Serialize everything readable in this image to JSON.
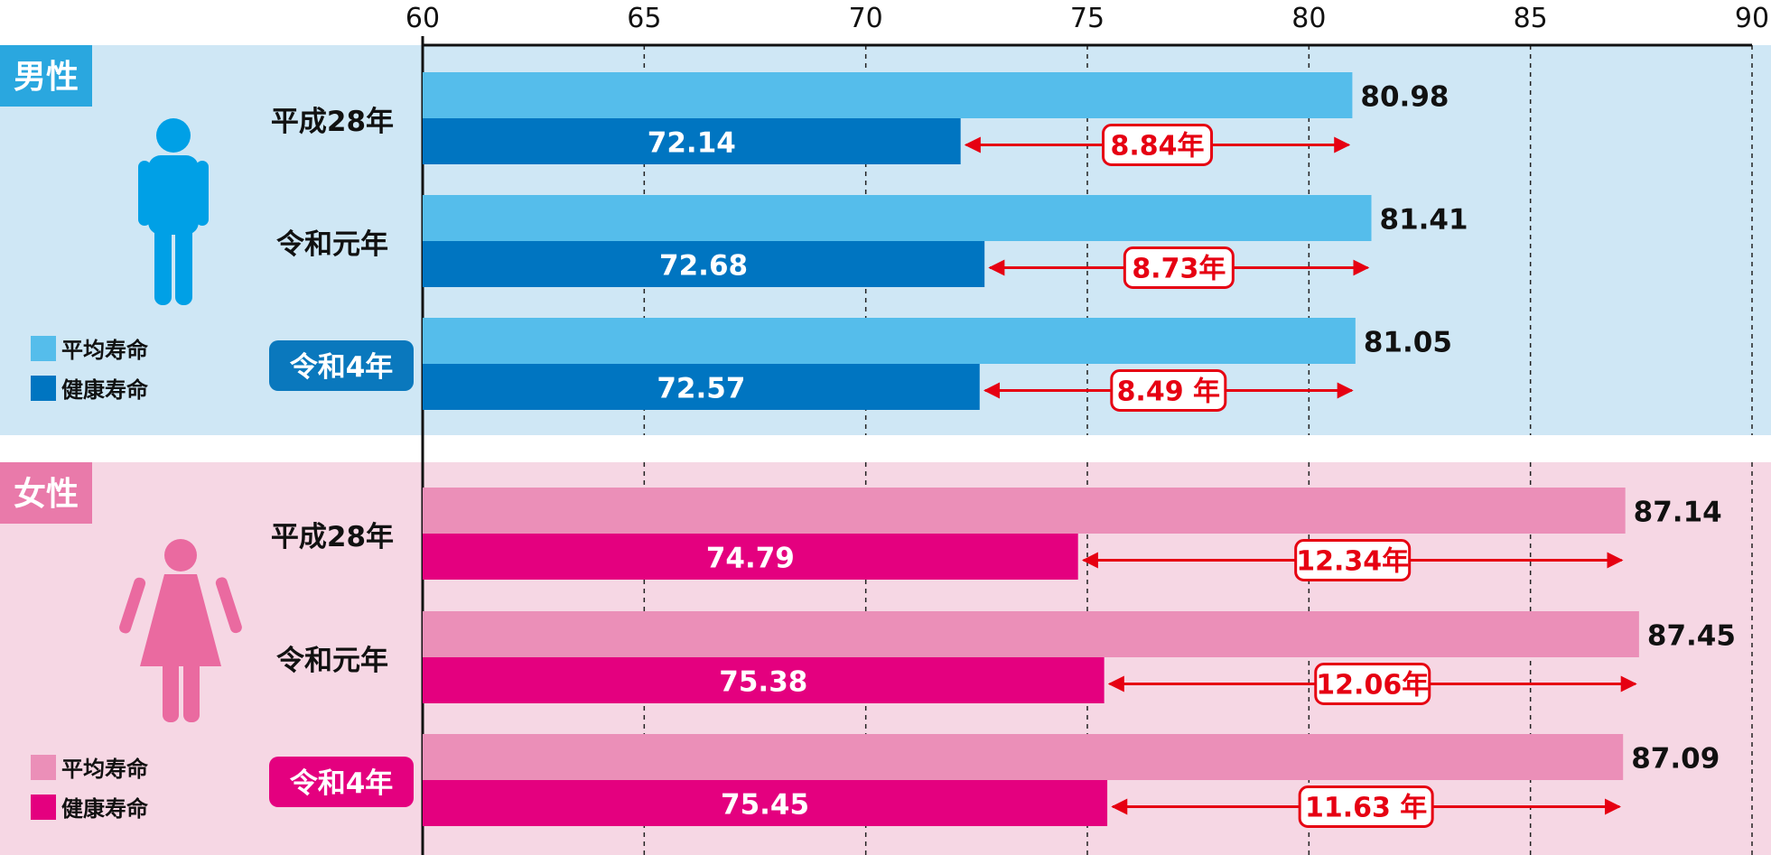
{
  "chart_data": {
    "type": "bar",
    "orientation": "horizontal",
    "xlim": [
      60,
      90
    ],
    "x_ticks": [
      "60",
      "65",
      "70",
      "75",
      "80",
      "85",
      "90"
    ],
    "grid": true,
    "groups": [
      {
        "label": "男性",
        "colors": {
          "background": "#cfe7f5",
          "avg": "#55bdeb",
          "health": "#0075c1",
          "badge": "#2aa7df",
          "current_year_badge": "#0a78bd"
        },
        "legend": [
          "平均寿命",
          "健康寿命"
        ],
        "categories": [
          "平成28年",
          "令和元年",
          "令和4年"
        ],
        "series": [
          {
            "name": "平均寿命",
            "values": [
              80.98,
              81.41,
              81.05
            ]
          },
          {
            "name": "健康寿命",
            "values": [
              72.14,
              72.68,
              72.57
            ]
          }
        ],
        "value_labels": {
          "avg": [
            "80.98",
            "81.41",
            "81.05"
          ],
          "health": [
            "72.14",
            "72.68",
            "72.57"
          ]
        },
        "gap_labels": [
          "8.84年",
          "8.73年",
          "8.49 年"
        ]
      },
      {
        "label": "女性",
        "colors": {
          "background": "#f6d7e4",
          "avg": "#eb8fb8",
          "health": "#e4007f",
          "badge": "#e97aaa",
          "current_year_badge": "#e4007f"
        },
        "legend": [
          "平均寿命",
          "健康寿命"
        ],
        "categories": [
          "平成28年",
          "令和元年",
          "令和4年"
        ],
        "series": [
          {
            "name": "平均寿命",
            "values": [
              87.14,
              87.45,
              87.09
            ]
          },
          {
            "name": "健康寿命",
            "values": [
              74.79,
              75.38,
              75.45
            ]
          }
        ],
        "value_labels": {
          "avg": [
            "87.14",
            "87.45",
            "87.09"
          ],
          "health": [
            "74.79",
            "75.38",
            "75.45"
          ]
        },
        "gap_labels": [
          "12.34年",
          "12.06年",
          "11.63 年"
        ]
      }
    ],
    "gap_color": "#e60012",
    "man_icon_color": "#00a0e6",
    "woman_icon_color": "#ea6aa0"
  }
}
